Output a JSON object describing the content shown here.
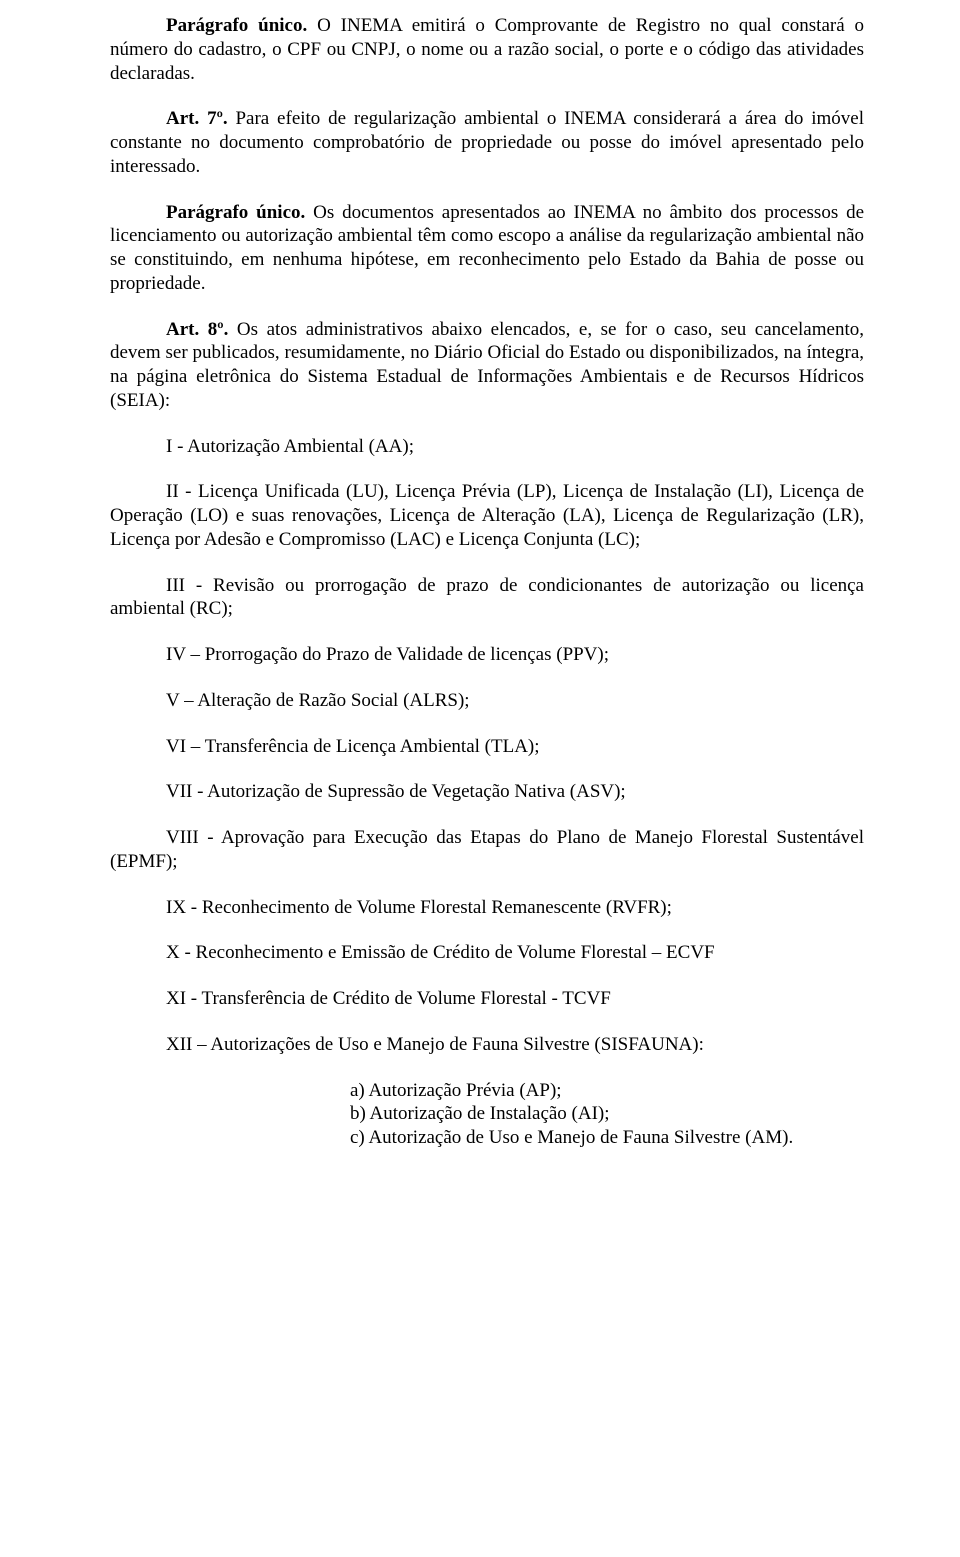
{
  "p1": {
    "lead_bold": "Parágrafo único.",
    "text": " O INEMA emitirá o Comprovante de Registro no qual constará o número do cadastro, o CPF ou CNPJ, o nome ou a razão social, o porte e o código das atividades declaradas."
  },
  "p2": {
    "lead_bold": "Art. 7º.",
    "text": " Para efeito de regularização ambiental o INEMA considerará a área do imóvel constante no documento comprobatório de propriedade ou posse do imóvel apresentado pelo interessado."
  },
  "p3": {
    "lead_bold": "Parágrafo único.",
    "text": " Os documentos apresentados ao INEMA no âmbito dos processos de licenciamento ou autorização ambiental têm como escopo a análise da regularização ambiental não se constituindo, em nenhuma hipótese, em reconhecimento pelo Estado da Bahia de posse ou propriedade."
  },
  "p4": {
    "lead_bold": "Art. 8º.",
    "text": " Os atos administrativos abaixo elencados, e, se for o caso, seu cancelamento, devem ser publicados, resumidamente, no Diário Oficial do Estado ou disponibilizados, na íntegra, na página eletrônica do Sistema Estadual de Informações Ambientais e de Recursos Hídricos (SEIA):"
  },
  "items": {
    "i": "I - Autorização Ambiental (AA);",
    "ii": "II - Licença Unificada (LU), Licença Prévia (LP), Licença de Instalação (LI), Licença de Operação (LO) e suas renovações, Licença de Alteração (LA), Licença de Regularização (LR), Licença por Adesão e Compromisso (LAC) e Licença Conjunta (LC);",
    "iii": "III - Revisão ou prorrogação de prazo de condicionantes de autorização ou licença ambiental (RC);",
    "iv": "IV – Prorrogação do Prazo de Validade de licenças (PPV);",
    "v": "V – Alteração de Razão Social (ALRS);",
    "vi": "VI – Transferência de Licença Ambiental (TLA);",
    "vii": "VII - Autorização de Supressão de Vegetação Nativa (ASV);",
    "viii": "VIII - Aprovação para Execução das Etapas do Plano de Manejo Florestal Sustentável (EPMF);",
    "ix": "IX - Reconhecimento de Volume Florestal Remanescente (RVFR);",
    "x": "X - Reconhecimento e Emissão de Crédito de Volume Florestal – ECVF",
    "xi": "XI - Transferência de Crédito de Volume Florestal - TCVF",
    "xii": "XII – Autorizações de Uso e Manejo de Fauna Silvestre (SISFAUNA):"
  },
  "sublist": {
    "a": "a)  Autorização Prévia (AP);",
    "b": "b)  Autorização de Instalação (AI);",
    "c": "c)  Autorização de Uso e Manejo de Fauna Silvestre (AM)."
  }
}
